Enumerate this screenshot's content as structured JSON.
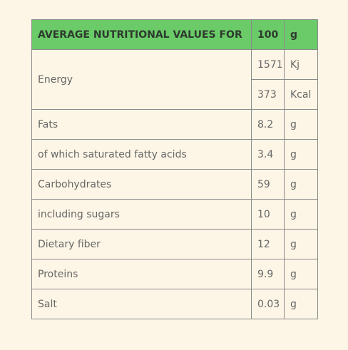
{
  "table": {
    "header": [
      "AVERAGE NUTRITIONAL VALUES FOR",
      "100",
      "g"
    ],
    "energy": {
      "label": "Energy",
      "values": [
        [
          "1571",
          "Kj"
        ],
        [
          "373",
          "Kcal"
        ]
      ]
    },
    "rows": [
      [
        "Fats",
        "8.2",
        "g"
      ],
      [
        "of which saturated fatty acids",
        "3.4",
        "g"
      ],
      [
        "Carbohydrates",
        "59",
        "g"
      ],
      [
        "including sugars",
        "10",
        "g"
      ],
      [
        "Dietary fiber",
        "12",
        "g"
      ],
      [
        "Proteins",
        "9.9",
        "g"
      ],
      [
        "Salt",
        "0.03",
        "g"
      ]
    ]
  }
}
